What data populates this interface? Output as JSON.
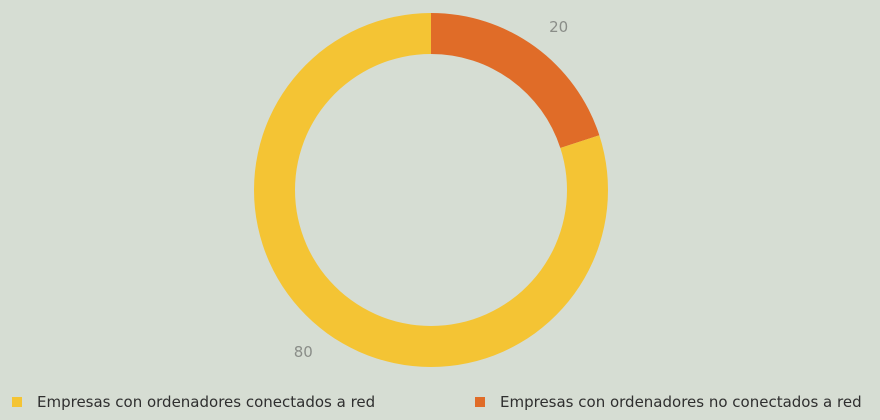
{
  "chart_data": {
    "type": "pie",
    "donut": true,
    "categories": [
      "Empresas con ordenadores conectados a red",
      "Empresas con ordenadores no conectados a red"
    ],
    "values": [
      80,
      20
    ],
    "data_labels": [
      "80",
      "20"
    ],
    "colors": [
      "#f4c434",
      "#e06c28"
    ],
    "legend_position": "bottom"
  }
}
